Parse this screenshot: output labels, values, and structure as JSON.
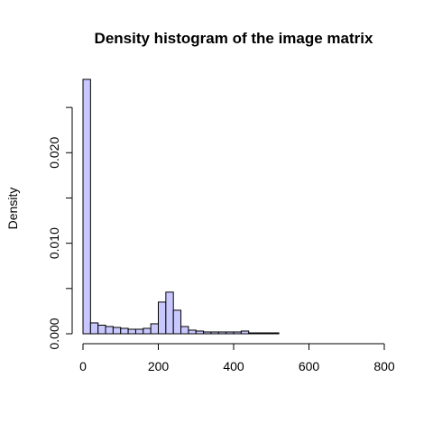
{
  "chart_data": {
    "type": "bar",
    "title": "Density histogram of the image matrix",
    "xlabel": "",
    "ylabel": "Density",
    "xlim": [
      0,
      800
    ],
    "ylim": [
      0,
      0.028
    ],
    "bin_width": 20,
    "bin_start": 0,
    "bar_color": "#c8c8ff",
    "x_ticks": [
      0,
      200,
      400,
      600,
      800
    ],
    "x_tick_labels": [
      "0",
      "200",
      "400",
      "600",
      "800"
    ],
    "y_ticks": [
      0.0,
      0.005,
      0.01,
      0.015,
      0.02,
      0.025
    ],
    "y_tick_labels": [
      "0.000",
      "",
      "0.010",
      "",
      "0.020",
      ""
    ],
    "values": [
      0.0281,
      0.0012,
      0.00095,
      0.0008,
      0.0007,
      0.0006,
      0.0005,
      0.0005,
      0.0006,
      0.0011,
      0.0035,
      0.0046,
      0.0026,
      0.0008,
      0.0004,
      0.0003,
      0.0002,
      0.0002,
      0.0002,
      0.0002,
      0.0002,
      0.0003,
      0.0001,
      0.0001,
      0.0001,
      0.0001,
      0,
      0,
      0,
      0,
      0,
      0,
      0,
      0,
      0,
      0,
      0,
      0,
      0,
      0
    ]
  }
}
